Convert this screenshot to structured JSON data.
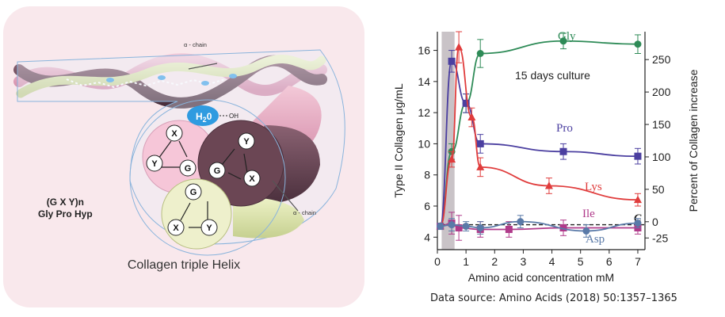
{
  "diagram": {
    "caption": "Collagen triple Helix",
    "formula_line1": "(G X Y)n",
    "formula_line2": "Gly Pro Hyp",
    "alpha_chain_top": "α - chain",
    "alpha_chain_right": "α - chain",
    "water_label": "H",
    "water_sub": "2",
    "water_label2": "0",
    "oh_label": "OH",
    "node_x": "X",
    "node_y": "Y",
    "node_g": "G"
  },
  "source_text": "Data source: Amino Acids (2018) 50:1357–1365",
  "chart_data": {
    "type": "line",
    "annotation": "15 days culture",
    "xlabel": "Amino acid concentration mM",
    "ylabel_left": "Type II Collagen μg/mL",
    "ylabel_right": "Percent of Collagen increase",
    "xlim": [
      0,
      7.25
    ],
    "ylim_left": [
      3.2,
      17.2
    ],
    "ylim_right": [
      -43,
      293
    ],
    "x_ticks": [
      "0",
      "1",
      "2",
      "3",
      "4",
      "5",
      "6",
      "7"
    ],
    "y_ticks_left": [
      "4",
      "6",
      "8",
      "10",
      "12",
      "14",
      "16"
    ],
    "y_ticks_right": [
      "-25",
      "0",
      "50",
      "100",
      "150",
      "200",
      "250"
    ],
    "control_label": "C",
    "control_value": 4.8,
    "shaded_band": [
      0.15,
      0.6
    ],
    "series": [
      {
        "name": "Gly",
        "color": "#2e8b57",
        "marker": "circle",
        "x": [
          0.1,
          0.5,
          1.0,
          1.5,
          4.4,
          7.0
        ],
        "y": [
          4.7,
          9.5,
          12.6,
          15.8,
          16.6,
          16.4
        ],
        "err": [
          0.2,
          0.5,
          0.6,
          0.9,
          0.5,
          0.6
        ]
      },
      {
        "name": "Pro",
        "color": "#4b3fa0",
        "marker": "square",
        "x": [
          0.1,
          0.5,
          1.0,
          1.5,
          4.4,
          7.0
        ],
        "y": [
          4.7,
          15.3,
          12.6,
          10.0,
          9.5,
          9.2
        ],
        "err": [
          0.2,
          0.7,
          0.6,
          0.6,
          0.5,
          0.5
        ]
      },
      {
        "name": "Lys",
        "color": "#e03c3c",
        "marker": "triangle",
        "x": [
          0.1,
          0.5,
          0.75,
          1.2,
          1.5,
          3.9,
          7.0
        ],
        "y": [
          4.7,
          9.0,
          16.2,
          11.7,
          8.5,
          7.3,
          6.4
        ],
        "err": [
          0.2,
          0.5,
          1.0,
          0.6,
          0.6,
          0.5,
          0.4
        ]
      },
      {
        "name": "Ile",
        "color": "#b03a8a",
        "marker": "square",
        "x": [
          0.1,
          0.5,
          0.75,
          1.5,
          2.5,
          4.4,
          7.0
        ],
        "y": [
          4.7,
          4.9,
          4.6,
          4.5,
          4.5,
          4.6,
          4.6
        ],
        "err": [
          0.2,
          0.7,
          0.8,
          0.5,
          0.5,
          0.5,
          0.4
        ]
      },
      {
        "name": "Asp",
        "color": "#5a7aa8",
        "marker": "circle",
        "x": [
          0.1,
          0.5,
          1.0,
          1.5,
          2.9,
          5.2,
          7.0
        ],
        "y": [
          4.7,
          4.8,
          4.7,
          4.6,
          5.0,
          4.4,
          4.9
        ],
        "err": [
          0.2,
          0.4,
          0.3,
          0.4,
          0.4,
          0.4,
          0.3
        ]
      }
    ]
  }
}
